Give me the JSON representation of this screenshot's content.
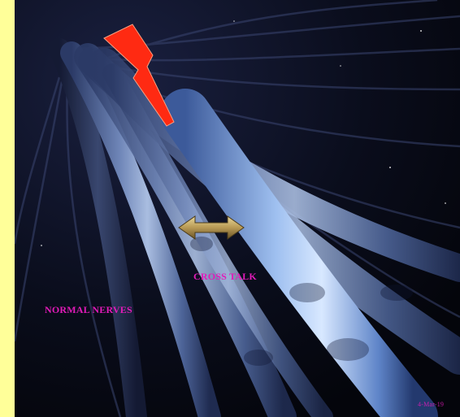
{
  "labels": {
    "cross_talk": "CROSS TALK",
    "normal_nerves": "NORMAL NERVES",
    "slide_number": "4-Mar-19"
  },
  "colors": {
    "sidebar": "#ffff99",
    "background": "#05060e",
    "label_text": "#e21bb9",
    "lightning": "#ff2a12",
    "arrow": "#c8b070"
  },
  "icons": {
    "lightning": "lightning-bolt-icon",
    "arrow": "double-arrow-icon"
  }
}
